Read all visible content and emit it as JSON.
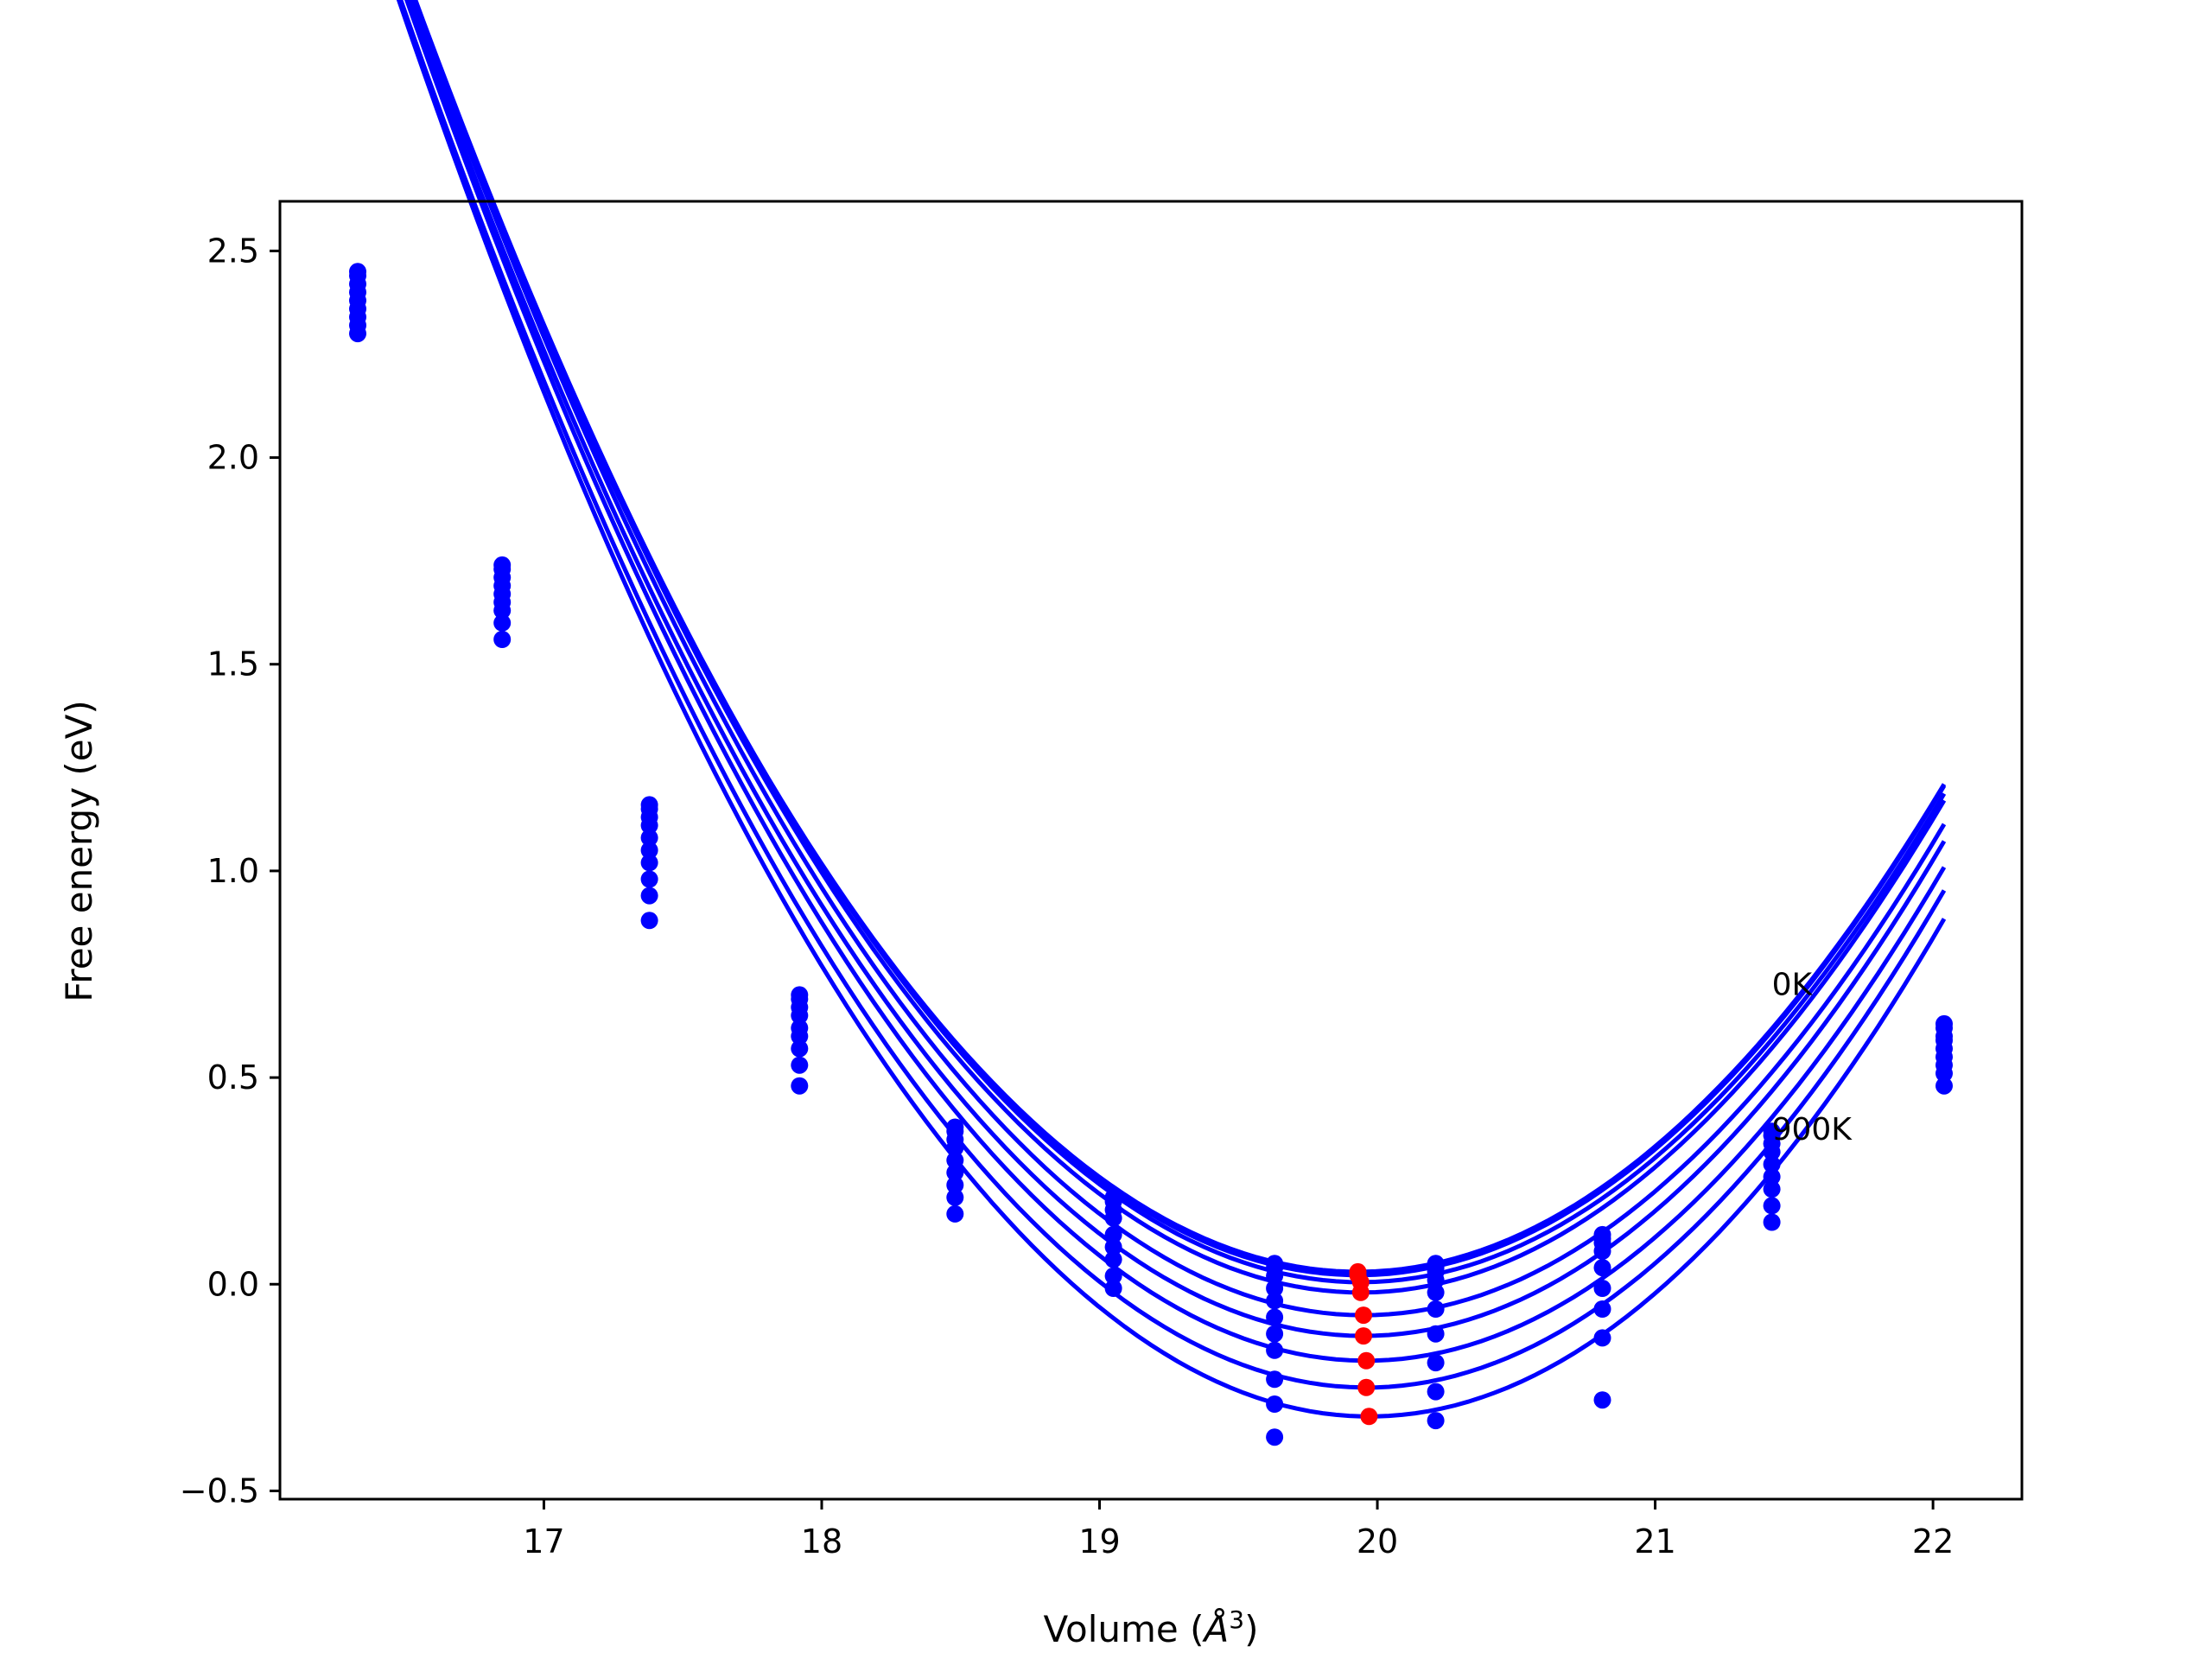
{
  "chart_data": {
    "type": "scatter",
    "title": "",
    "xlabel": "Volume (Å³)",
    "xlabel_parts": {
      "main": "Volume (",
      "sym": "Å",
      "sup": "3",
      "close": ")"
    },
    "ylabel": "Free energy (eV)",
    "xlim": [
      16.05,
      22.32
    ],
    "ylim": [
      -0.52,
      2.62
    ],
    "xticks": [
      17,
      18,
      19,
      20,
      21,
      22
    ],
    "xtick_labels": [
      "17",
      "18",
      "19",
      "20",
      "21",
      "22"
    ],
    "yticks": [
      -0.5,
      0.0,
      0.5,
      1.0,
      1.5,
      2.0,
      2.5
    ],
    "ytick_labels": [
      "−0.5",
      "0.0",
      "0.5",
      "1.0",
      "1.5",
      "2.0",
      "2.5"
    ],
    "grid": false,
    "legend": "none",
    "colors": {
      "curves": "#0000ff",
      "points": "#0000ff",
      "minima": "#ff0000"
    },
    "annotations": [
      {
        "text": "0K",
        "x": 21.42,
        "y": 0.7
      },
      {
        "text": "900K",
        "x": 21.42,
        "y": 0.35
      }
    ],
    "fit_x_range": [
      16.33,
      22.04
    ],
    "volumes": [
      16.33,
      16.85,
      17.38,
      17.92,
      18.48,
      19.05,
      19.63,
      20.21,
      20.81,
      21.42,
      22.04
    ],
    "series": [
      {
        "fit": {
          "V0": 19.93,
          "E0": 0.03,
          "curv": 0.265
        },
        "points": [
          2.45,
          1.74,
          1.16,
          0.7,
          0.38,
          0.21,
          0.05,
          0.05,
          0.12,
          0.37,
          0.63
        ],
        "minimum": [
          19.93,
          0.03
        ]
      },
      {
        "fit": {
          "V0": 19.93,
          "E0": 0.022,
          "curv": 0.266
        },
        "points": [
          2.44,
          1.73,
          1.15,
          0.69,
          0.37,
          0.2,
          0.04,
          0.04,
          0.11,
          0.36,
          0.62
        ],
        "minimum": [
          19.93,
          0.022
        ]
      },
      {
        "fit": {
          "V0": 19.94,
          "E0": 0.005,
          "curv": 0.268
        },
        "points": [
          2.42,
          1.71,
          1.13,
          0.67,
          0.35,
          0.18,
          0.02,
          0.03,
          0.1,
          0.34,
          0.6
        ],
        "minimum": [
          19.94,
          0.005
        ]
      },
      {
        "fit": {
          "V0": 19.94,
          "E0": -0.02,
          "curv": 0.27
        },
        "points": [
          2.4,
          1.69,
          1.11,
          0.65,
          0.33,
          0.16,
          -0.01,
          0.01,
          0.08,
          0.32,
          0.59
        ],
        "minimum": [
          19.94,
          -0.02
        ]
      },
      {
        "fit": {
          "V0": 19.95,
          "E0": -0.075,
          "curv": 0.272
        },
        "points": [
          2.38,
          1.67,
          1.08,
          0.62,
          0.3,
          0.12,
          -0.04,
          -0.02,
          0.04,
          0.29,
          0.57
        ],
        "minimum": [
          19.95,
          -0.075
        ]
      },
      {
        "fit": {
          "V0": 19.95,
          "E0": -0.125,
          "curv": 0.274
        },
        "points": [
          2.36,
          1.65,
          1.05,
          0.6,
          0.27,
          0.09,
          -0.08,
          -0.06,
          -0.01,
          0.26,
          0.55
        ],
        "minimum": [
          19.95,
          -0.125
        ]
      },
      {
        "fit": {
          "V0": 19.96,
          "E0": -0.185,
          "curv": 0.276
        },
        "points": [
          2.34,
          1.63,
          1.02,
          0.57,
          0.24,
          0.06,
          -0.12,
          -0.12,
          -0.06,
          0.23,
          0.53
        ],
        "minimum": [
          19.96,
          -0.185
        ]
      },
      {
        "fit": {
          "V0": 19.96,
          "E0": -0.25,
          "curv": 0.278
        },
        "points": [
          2.32,
          1.6,
          0.98,
          0.53,
          0.21,
          0.02,
          -0.16,
          -0.19,
          -0.13,
          0.19,
          0.51
        ],
        "minimum": [
          19.96,
          -0.25
        ]
      },
      {
        "fit": {
          "V0": 19.97,
          "E0": -0.32,
          "curv": 0.281
        },
        "points": [
          2.3,
          1.56,
          0.88,
          0.48,
          0.17,
          -0.01,
          -0.37,
          -0.33,
          -0.28,
          0.15,
          0.48
        ],
        "minimum": [
          19.97,
          -0.32
        ]
      }
    ],
    "extra_points": [
      [
        17.38,
        0.94
      ],
      [
        19.63,
        -0.23
      ],
      [
        19.63,
        -0.29
      ],
      [
        20.21,
        -0.26
      ]
    ]
  }
}
